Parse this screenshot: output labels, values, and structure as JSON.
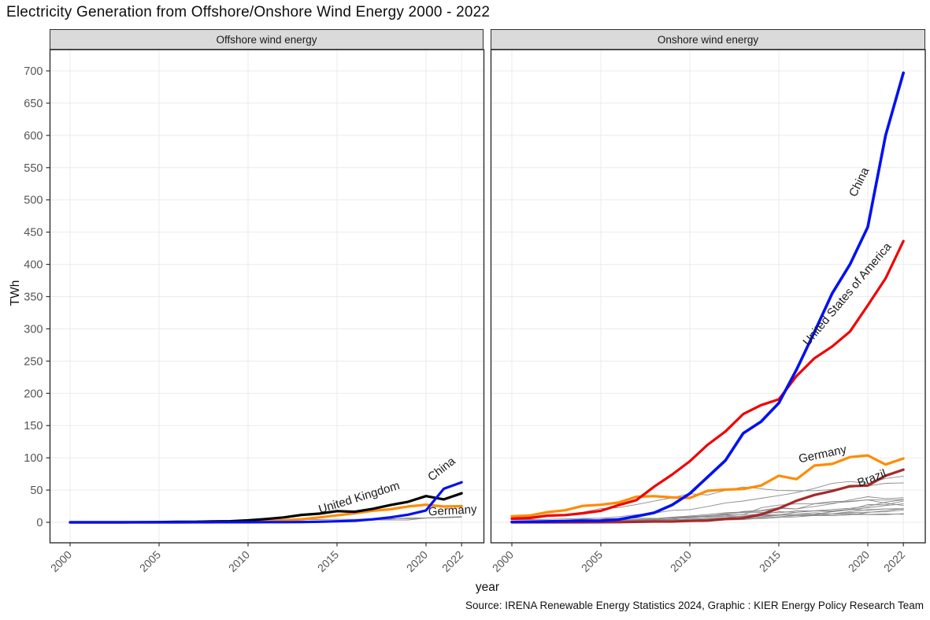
{
  "title": "Electricity Generation from Offshore/Onshore Wind Energy 2000 - 2022",
  "caption": "Source: IRENA Renewable Energy Statistics 2024, Graphic : KIER Energy Policy Research Team",
  "x_axis": {
    "label": "year",
    "ticks": [
      2000,
      2005,
      2010,
      2015,
      2020,
      2022
    ]
  },
  "y_axis": {
    "label": "TWh",
    "ticks": [
      0,
      50,
      100,
      150,
      200,
      250,
      300,
      350,
      400,
      450,
      500,
      550,
      600,
      650,
      700
    ]
  },
  "colors": {
    "china": "#0011f0",
    "usa": "#f10000",
    "germany": "#ff8c00",
    "uk": "#000000",
    "brazil": "#a52a2a",
    "minor": "#8a8a8a",
    "grid": "#ebebeb",
    "panel_border": "#2f2f2f",
    "strip_bg": "#dadada",
    "tick_label": "#555555",
    "series_label": "#1c1c1c"
  },
  "years": [
    2000,
    2001,
    2002,
    2003,
    2004,
    2005,
    2006,
    2007,
    2008,
    2009,
    2010,
    2011,
    2012,
    2013,
    2014,
    2015,
    2016,
    2017,
    2018,
    2019,
    2020,
    2021,
    2022
  ],
  "chart_data": [
    {
      "type": "line",
      "title": "Offshore wind energy",
      "xlabel": "year",
      "ylabel": "TWh",
      "x_range": [
        2000,
        2022
      ],
      "ylim": [
        0,
        733
      ],
      "grid": "major-only",
      "series": [
        {
          "name": "other_1",
          "color": "#8a8a8a",
          "width": 0.9,
          "values": [
            0.1,
            0.1,
            0.2,
            0.4,
            0.6,
            1.4,
            1.7,
            1.8,
            1.9,
            1.9,
            3.1,
            3.5,
            3.7,
            4.2,
            4.4,
            4.8,
            4.7,
            5.5,
            5.4,
            5.8,
            6.5,
            7.9,
            8.9
          ]
        },
        {
          "name": "other_2",
          "color": "#8a8a8a",
          "width": 0.9,
          "values": [
            0,
            0,
            0,
            0,
            0,
            0,
            0.3,
            0.6,
            0.7,
            0.7,
            0.8,
            0.8,
            0.8,
            0.8,
            0.6,
            1.0,
            2.5,
            3.5,
            3.5,
            3.7,
            6.7,
            7.8,
            8.0
          ]
        },
        {
          "name": "other_3",
          "color": "#8a8a8a",
          "width": 0.9,
          "values": [
            0,
            0,
            0,
            0,
            0,
            0,
            0,
            0,
            0,
            0.1,
            0.2,
            0.6,
            1.2,
            2.1,
            2.2,
            2.7,
            2.8,
            3.2,
            4.9,
            6.7,
            6.9,
            7.0,
            7.8
          ]
        },
        {
          "name": "Germany",
          "color": "#ff8c00",
          "width": 3.2,
          "values": [
            0,
            0,
            0,
            0,
            0,
            0,
            0,
            0,
            0,
            0.7,
            1.2,
            2.2,
            3.1,
            4.8,
            7.6,
            10.8,
            14.0,
            17.9,
            20.2,
            24.6,
            27.3,
            24.4,
            25.1
          ],
          "label": {
            "year": 2021.5,
            "value": 12.5,
            "angle": -3
          }
        },
        {
          "name": "United Kingdom",
          "color": "#000000",
          "width": 3.2,
          "values": [
            0,
            0,
            0,
            0,
            0.2,
            0.4,
            0.7,
            0.8,
            1.3,
            1.7,
            3.1,
            5.1,
            7.6,
            11.5,
            13.4,
            17.4,
            16.4,
            20.9,
            26.7,
            31.9,
            40.7,
            35.5,
            45.0
          ],
          "label": {
            "year": 2016.3,
            "value": 33,
            "angle": -17
          }
        },
        {
          "name": "China",
          "color": "#0011f0",
          "width": 3.2,
          "values": [
            0,
            0,
            0,
            0,
            0,
            0,
            0,
            0.1,
            0.1,
            0.1,
            0.1,
            0.2,
            0.3,
            0.4,
            0.9,
            1.6,
            2.4,
            4.6,
            7.7,
            11.9,
            18.5,
            52.0,
            62.0
          ],
          "label": {
            "year": 2021.0,
            "value": 78,
            "angle": -38
          }
        }
      ]
    },
    {
      "type": "line",
      "title": "Onshore wind energy",
      "xlabel": "year",
      "ylabel": "TWh",
      "x_range": [
        2000,
        2022
      ],
      "ylim": [
        0,
        733
      ],
      "grid": "major-only",
      "series": [
        {
          "name": "other_1",
          "color": "#8a8a8a",
          "width": 0.9,
          "values": [
            1.7,
            2.1,
            2.7,
            3.4,
            5.0,
            6.5,
            8.7,
            11.9,
            14.2,
            18.6,
            19.7,
            24.5,
            30.0,
            33.0,
            37.3,
            41.4,
            46.0,
            52.6,
            60.3,
            63.3,
            60.4,
            68.0,
            71.5
          ]
        },
        {
          "name": "other_2",
          "color": "#8a8a8a",
          "width": 0.9,
          "values": [
            4.7,
            6.9,
            9.3,
            12.1,
            15.7,
            21.2,
            22.9,
            27.6,
            32.9,
            38.1,
            44.3,
            42.4,
            49.5,
            54.7,
            52.0,
            49.3,
            48.9,
            49.1,
            50.8,
            54.2,
            56.4,
            60.5,
            61.1
          ]
        },
        {
          "name": "other_3",
          "color": "#8a8a8a",
          "width": 0.9,
          "values": [
            0.9,
            1.0,
            1.3,
            1.3,
            1.9,
            2.8,
            3.6,
            4.5,
            5.8,
            7.6,
            7.2,
            10.5,
            12.2,
            16.9,
            18.6,
            22.8,
            20.7,
            28.7,
            30.2,
            32.0,
            34.7,
            29.7,
            26.1
          ]
        },
        {
          "name": "other_4",
          "color": "#8a8a8a",
          "width": 0.9,
          "values": [
            0.1,
            0.1,
            0.3,
            0.4,
            0.6,
            1.0,
            2.2,
            4.1,
            5.7,
            7.9,
            9.9,
            12.1,
            14.9,
            16.0,
            17.2,
            21.4,
            20.9,
            24.6,
            28.6,
            34.7,
            39.7,
            36.8,
            38.1
          ]
        },
        {
          "name": "other_5",
          "color": "#8a8a8a",
          "width": 0.9,
          "values": [
            0.3,
            0.4,
            0.4,
            0.7,
            1.0,
            1.6,
            2.5,
            3.0,
            3.8,
            4.5,
            8.7,
            10.2,
            11.6,
            11.7,
            22.5,
            26.6,
            28.6,
            28.9,
            32.3,
            32.7,
            34.9,
            34.4,
            35.6
          ]
        },
        {
          "name": "other_6",
          "color": "#8a8a8a",
          "width": 0.9,
          "values": [
            0.4,
            0.5,
            0.6,
            0.7,
            0.9,
            0.9,
            1.0,
            1.4,
            2.0,
            2.5,
            3.5,
            6.1,
            7.2,
            9.9,
            11.5,
            16.6,
            15.5,
            17.6,
            16.6,
            19.9,
            27.5,
            27.1,
            33.0
          ]
        },
        {
          "name": "other_7",
          "color": "#8a8a8a",
          "width": 0.9,
          "values": [
            0,
            0,
            0,
            0.1,
            0.1,
            0.1,
            0.1,
            0.4,
            0.8,
            1.5,
            2.9,
            4.7,
            5.9,
            7.6,
            8.5,
            11.7,
            15.5,
            17.9,
            19.9,
            21.7,
            24.8,
            31.1,
            35.1
          ]
        },
        {
          "name": "other_8",
          "color": "#8a8a8a",
          "width": 0.9,
          "values": [
            0.1,
            0.2,
            0.3,
            0.5,
            0.7,
            0.9,
            1.7,
            2.6,
            3.9,
            3.8,
            5.1,
            5.8,
            6.9,
            7.3,
            10.3,
            11.5,
            12.2,
            12.6,
            16.3,
            19.5,
            22.6,
            26.0,
            28.7
          ]
        },
        {
          "name": "other_9",
          "color": "#8a8a8a",
          "width": 0.9,
          "values": [
            0.6,
            1.2,
            1.4,
            1.5,
            1.8,
            2.3,
            3.0,
            4.0,
            4.9,
            6.5,
            9.1,
            9.9,
            13.4,
            14.9,
            15.2,
            14.8,
            17.7,
            17.7,
            17.7,
            20.2,
            18.7,
            20.9,
            20.5
          ]
        },
        {
          "name": "other_10",
          "color": "#8a8a8a",
          "width": 0.9,
          "values": [
            4.2,
            4.3,
            4.7,
            5.2,
            6.1,
            6.1,
            5.5,
            6.5,
            6.2,
            6.0,
            6.7,
            8.2,
            8.9,
            9.2,
            10.9,
            11.5,
            10.4,
            11.4,
            10.4,
            12.2,
            12.0,
            11.9,
            13.4
          ]
        },
        {
          "name": "other_11",
          "color": "#8a8a8a",
          "width": 0.9,
          "values": [
            0,
            0,
            0.1,
            0.1,
            0.1,
            0.1,
            0.3,
            0.5,
            0.8,
            1.1,
            1.7,
            3.2,
            4.7,
            6.0,
            7.7,
            10.9,
            12.6,
            14.9,
            12.8,
            15.1,
            15.8,
            16.2,
            19.0
          ]
        },
        {
          "name": "other_12",
          "color": "#8a8a8a",
          "width": 0.9,
          "values": [
            0.8,
            0.8,
            0.9,
            1.3,
            1.9,
            2.1,
            2.7,
            3.4,
            4.3,
            4.6,
            4.0,
            5.1,
            5.0,
            5.6,
            5.8,
            7.6,
            8.4,
            10.6,
            10.5,
            11.5,
            15.3,
            18.0,
            21.2
          ]
        },
        {
          "name": "other_13",
          "color": "#8a8a8a",
          "width": 0.9,
          "values": [
            0,
            0,
            0,
            0,
            0,
            0,
            0,
            0.2,
            0.3,
            0.6,
            1.2,
            1.6,
            3.6,
            4.2,
            6.4,
            8.7,
            10.4,
            10.4,
            13.1,
            16.7,
            19.7,
            20.8,
            21.1
          ]
        },
        {
          "name": "other_14",
          "color": "#8a8a8a",
          "width": 0.9,
          "values": [
            0.2,
            0.3,
            0.4,
            0.5,
            0.8,
            1.8,
            2.9,
            4.0,
            5.7,
            7.5,
            9.1,
            9.0,
            10.0,
            12.0,
            12.1,
            11.3,
            12.5,
            12.2,
            12.6,
            13.7,
            12.3,
            13.1,
            12.5
          ]
        },
        {
          "name": "Brazil",
          "color": "#a52a2a",
          "width": 3.2,
          "values": [
            0,
            0,
            0,
            0,
            0,
            0.1,
            0.2,
            0.7,
            1.2,
            1.2,
            2.2,
            2.7,
            5.1,
            6.6,
            12.2,
            21.6,
            33.5,
            42.4,
            48.5,
            56.0,
            57.1,
            72.3,
            81.6
          ],
          "label": {
            "year": 2020.3,
            "value": 63,
            "angle": -21
          }
        },
        {
          "name": "Germany",
          "color": "#ff8c00",
          "width": 3.2,
          "values": [
            9.4,
            10.5,
            15.8,
            18.7,
            25.5,
            27.2,
            30.7,
            39.7,
            40.6,
            38.6,
            37.8,
            48.9,
            50.7,
            51.7,
            57.0,
            72.2,
            67.0,
            88.0,
            90.5,
            101.2,
            103.7,
            89.5,
            99.0
          ],
          "label": {
            "year": 2017.5,
            "value": 100,
            "angle": -12
          }
        },
        {
          "name": "United States of America",
          "color": "#f10000",
          "width": 3.2,
          "values": [
            5.6,
            6.7,
            10.4,
            11.2,
            14.1,
            17.8,
            26.6,
            34.4,
            55.4,
            73.9,
            94.7,
            120.2,
            140.8,
            167.8,
            181.7,
            190.7,
            227.0,
            254.3,
            272.7,
            295.9,
            336.4,
            378.2,
            436.0
          ],
          "label": {
            "year": 2019.0,
            "value": 350,
            "angle": -50
          }
        },
        {
          "name": "China",
          "color": "#0011f0",
          "width": 3.6,
          "values": [
            0.6,
            0.9,
            1.3,
            1.8,
            2.3,
            2.6,
            4.4,
            9.3,
            14.8,
            26.9,
            44.6,
            70.3,
            95.9,
            138.0,
            156.0,
            185.0,
            237.0,
            295.0,
            355.0,
            400.0,
            458.0,
            600.0,
            697.0
          ],
          "label": {
            "year": 2019.7,
            "value": 525,
            "angle": -64
          }
        }
      ]
    }
  ]
}
